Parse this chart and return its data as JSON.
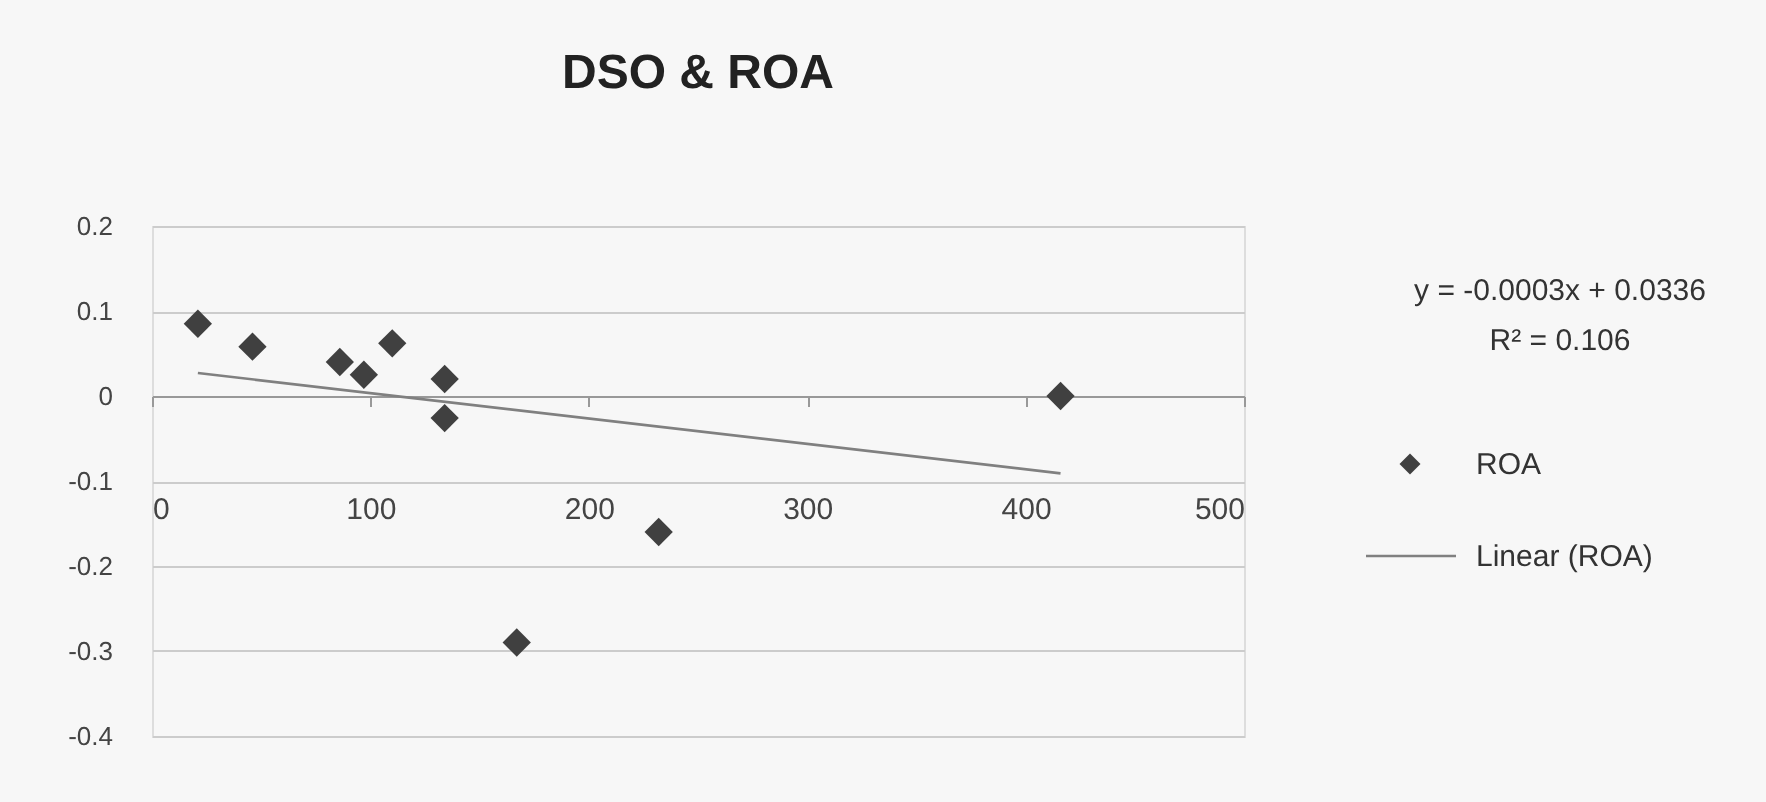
{
  "chart_data": {
    "type": "scatter",
    "title": "DSO & ROA",
    "xlim": [
      0,
      500
    ],
    "xticks": [
      0,
      100,
      200,
      300,
      400,
      500
    ],
    "ylim": [
      -0.4,
      0.2
    ],
    "yticks": [
      -0.4,
      -0.3,
      -0.2,
      -0.1,
      0,
      0.2,
      0.1
    ],
    "grid": "y",
    "legend": "right",
    "annotations": [
      "y = -0.0003x + 0.0336",
      "R² = 0.106"
    ],
    "series": [
      {
        "name": "ROA",
        "marker": "diamond",
        "color": "#404040",
        "x": [
          21,
          46,
          86,
          97,
          110,
          134,
          134,
          167,
          232,
          416
        ],
        "values": [
          0.085,
          0.058,
          0.04,
          0.025,
          0.062,
          0.02,
          -0.026,
          -0.29,
          -0.16,
          0.0
        ]
      },
      {
        "name": "Linear (ROA)",
        "type": "line",
        "color": "#808080",
        "line_style": "solid",
        "x": [
          21,
          416
        ],
        "values": [
          0.027,
          -0.091
        ]
      }
    ]
  }
}
